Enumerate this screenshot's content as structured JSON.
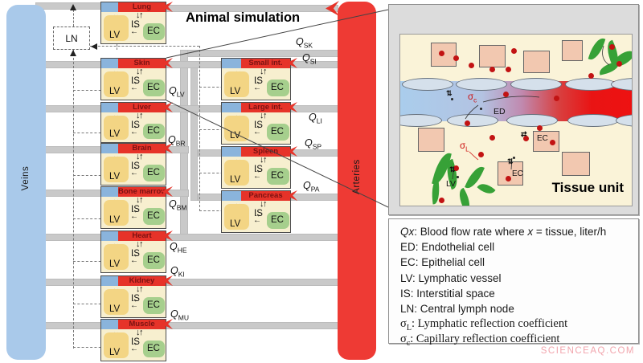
{
  "title": "Animal simulation",
  "vessels": {
    "veins": "Veins",
    "arteries": "Arteries"
  },
  "lymph_node_label": "LN",
  "compartments": {
    "lv": "LV",
    "is": "IS",
    "ec": "EC"
  },
  "organs": {
    "left": [
      {
        "name": "Lung"
      },
      {
        "name": "Skin"
      },
      {
        "name": "Liver"
      },
      {
        "name": "Brain"
      },
      {
        "name": "Bone marrow"
      },
      {
        "name": "Heart"
      },
      {
        "name": "Kidney"
      },
      {
        "name": "Muscle"
      }
    ],
    "right": [
      {
        "name": "Small int."
      },
      {
        "name": "Large int."
      },
      {
        "name": "Spleen"
      },
      {
        "name": "Pancreas"
      }
    ]
  },
  "flows": {
    "symbol": "Q",
    "labels": [
      {
        "sub": "SK"
      },
      {
        "sub": "SI"
      },
      {
        "sub": "LV"
      },
      {
        "sub": "LI"
      },
      {
        "sub": "BR"
      },
      {
        "sub": "SP"
      },
      {
        "sub": "BM"
      },
      {
        "sub": "PA"
      },
      {
        "sub": "HE"
      },
      {
        "sub": "KI"
      },
      {
        "sub": "MU"
      }
    ]
  },
  "inset": {
    "title": "Tissue unit",
    "labels": {
      "ed": "ED",
      "ec1": "EC",
      "ec2": "EC",
      "lv": "LV",
      "sigma_c": {
        "base": "σ",
        "sub": "c"
      },
      "sigma_l": {
        "base": "σ",
        "sub": "L"
      }
    }
  },
  "legend": {
    "lines": [
      {
        "serif": false,
        "parts": [
          {
            "t": "Q",
            "i": true
          },
          {
            "t": "x",
            "i": true
          },
          {
            "t": ": Blood flow rate where "
          },
          {
            "t": "x",
            "i": true
          },
          {
            "t": " = tissue, liter/h"
          }
        ]
      },
      {
        "serif": false,
        "parts": [
          {
            "t": "ED: Endothelial cell"
          }
        ]
      },
      {
        "serif": false,
        "parts": [
          {
            "t": "EC: Epithelial cell"
          }
        ]
      },
      {
        "serif": false,
        "parts": [
          {
            "t": "LV: Lymphatic vessel"
          }
        ]
      },
      {
        "serif": false,
        "parts": [
          {
            "t": "IS: Interstitial space"
          }
        ]
      },
      {
        "serif": false,
        "parts": [
          {
            "t": "LN: Central lymph node"
          }
        ]
      },
      {
        "serif": true,
        "parts": [
          {
            "t": "σ"
          },
          {
            "t": "L",
            "s": true
          },
          {
            "t": ": Lymphatic reflection coefficient"
          }
        ]
      },
      {
        "serif": true,
        "parts": [
          {
            "t": "σ"
          },
          {
            "t": "c",
            "s": true
          },
          {
            "t": ": Capillary reflection coefficient"
          }
        ]
      }
    ]
  },
  "watermark": "SCIENCEAQ.COM",
  "colors": {
    "vein": "#a9c9ea",
    "artery": "#ee3a34",
    "header_blue": "#8ab4dc",
    "header_red": "#e63329",
    "organ_name": "#7a1212",
    "body_cream": "#f7efcf",
    "lv_yellow": "#f3d584",
    "ec_green": "#a6cf8d",
    "bar_gray": "#c9c9c9",
    "tissue_cream": "#faf3d8",
    "frame_gray": "#dcdcdc",
    "cell_salmon": "#f2c8b0",
    "leaf_green": "#37a137",
    "dot_red": "#c21313",
    "watermark_pink": "#f2a5ad"
  }
}
